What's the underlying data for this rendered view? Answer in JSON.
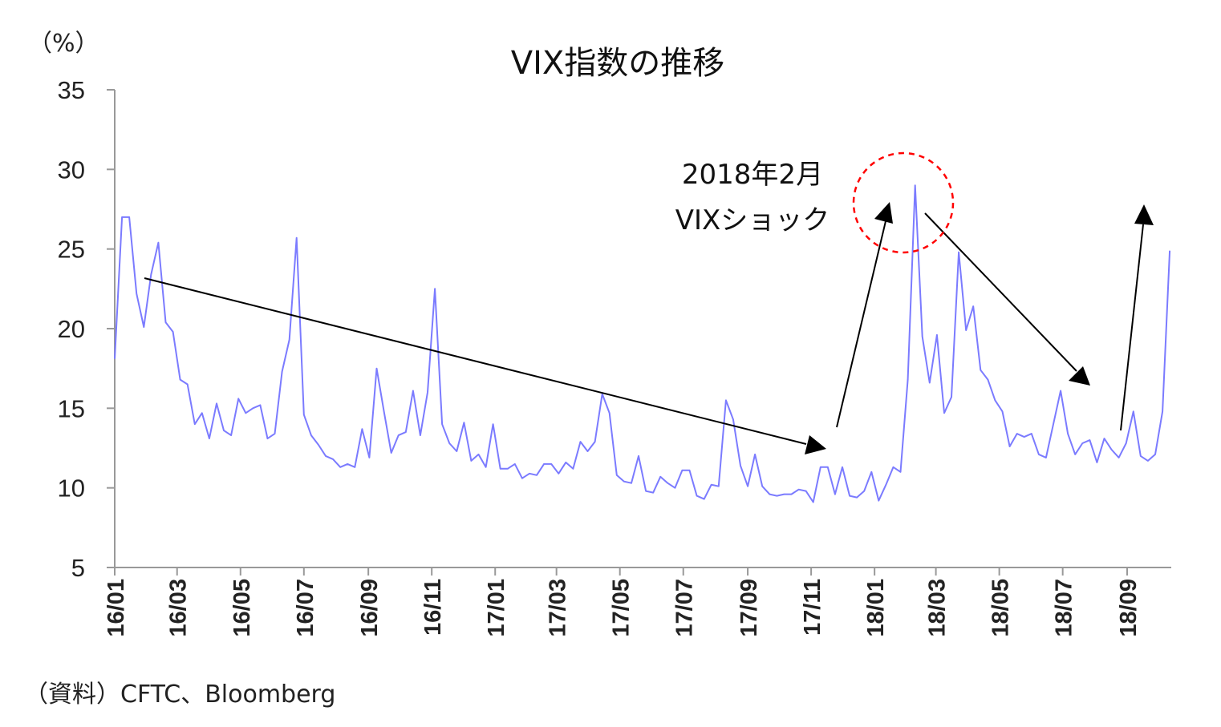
{
  "chart_data": {
    "type": "line",
    "title": "VIX指数の推移",
    "ylabel": "（%）",
    "xlabel": "",
    "ylim": [
      5,
      35
    ],
    "yticks": [
      5,
      10,
      15,
      20,
      25,
      30,
      35
    ],
    "xticks": [
      "16/01",
      "16/03",
      "16/05",
      "16/07",
      "16/09",
      "16/11",
      "17/01",
      "17/03",
      "17/05",
      "17/07",
      "17/09",
      "17/11",
      "18/01",
      "18/03",
      "18/05",
      "18/07",
      "18/09"
    ],
    "grid": false,
    "line_color": "#7b7bff",
    "points": [
      [
        "2016-01-01",
        18.1
      ],
      [
        "2016-01-08",
        27.0
      ],
      [
        "2016-01-15",
        27.0
      ],
      [
        "2016-01-22",
        22.2
      ],
      [
        "2016-01-29",
        20.1
      ],
      [
        "2016-02-05",
        23.4
      ],
      [
        "2016-02-12",
        25.4
      ],
      [
        "2016-02-19",
        20.4
      ],
      [
        "2016-02-26",
        19.8
      ],
      [
        "2016-03-04",
        16.8
      ],
      [
        "2016-03-11",
        16.5
      ],
      [
        "2016-03-18",
        14.0
      ],
      [
        "2016-03-25",
        14.7
      ],
      [
        "2016-04-01",
        13.1
      ],
      [
        "2016-04-08",
        15.3
      ],
      [
        "2016-04-15",
        13.6
      ],
      [
        "2016-04-22",
        13.3
      ],
      [
        "2016-04-29",
        15.6
      ],
      [
        "2016-05-06",
        14.7
      ],
      [
        "2016-05-13",
        15.0
      ],
      [
        "2016-05-20",
        15.2
      ],
      [
        "2016-05-27",
        13.1
      ],
      [
        "2016-06-03",
        13.4
      ],
      [
        "2016-06-10",
        17.3
      ],
      [
        "2016-06-17",
        19.3
      ],
      [
        "2016-06-24",
        25.7
      ],
      [
        "2016-07-01",
        14.6
      ],
      [
        "2016-07-08",
        13.3
      ],
      [
        "2016-07-15",
        12.7
      ],
      [
        "2016-07-22",
        12.0
      ],
      [
        "2016-07-29",
        11.8
      ],
      [
        "2016-08-05",
        11.3
      ],
      [
        "2016-08-12",
        11.5
      ],
      [
        "2016-08-19",
        11.3
      ],
      [
        "2016-08-26",
        13.7
      ],
      [
        "2016-09-02",
        11.9
      ],
      [
        "2016-09-09",
        17.5
      ],
      [
        "2016-09-16",
        14.8
      ],
      [
        "2016-09-23",
        12.2
      ],
      [
        "2016-09-30",
        13.3
      ],
      [
        "2016-10-07",
        13.5
      ],
      [
        "2016-10-14",
        16.1
      ],
      [
        "2016-10-21",
        13.3
      ],
      [
        "2016-10-28",
        16.0
      ],
      [
        "2016-11-04",
        22.5
      ],
      [
        "2016-11-11",
        14.0
      ],
      [
        "2016-11-18",
        12.8
      ],
      [
        "2016-11-25",
        12.3
      ],
      [
        "2016-12-02",
        14.1
      ],
      [
        "2016-12-09",
        11.7
      ],
      [
        "2016-12-16",
        12.1
      ],
      [
        "2016-12-23",
        11.3
      ],
      [
        "2016-12-30",
        14.0
      ],
      [
        "2017-01-06",
        11.2
      ],
      [
        "2017-01-13",
        11.2
      ],
      [
        "2017-01-20",
        11.5
      ],
      [
        "2017-01-27",
        10.6
      ],
      [
        "2017-02-03",
        10.9
      ],
      [
        "2017-02-10",
        10.8
      ],
      [
        "2017-02-17",
        11.5
      ],
      [
        "2017-02-24",
        11.5
      ],
      [
        "2017-03-03",
        10.9
      ],
      [
        "2017-03-10",
        11.6
      ],
      [
        "2017-03-17",
        11.2
      ],
      [
        "2017-03-24",
        12.9
      ],
      [
        "2017-03-31",
        12.3
      ],
      [
        "2017-04-07",
        12.9
      ],
      [
        "2017-04-14",
        15.9
      ],
      [
        "2017-04-21",
        14.7
      ],
      [
        "2017-04-28",
        10.8
      ],
      [
        "2017-05-05",
        10.4
      ],
      [
        "2017-05-12",
        10.3
      ],
      [
        "2017-05-19",
        12.0
      ],
      [
        "2017-05-26",
        9.8
      ],
      [
        "2017-06-02",
        9.7
      ],
      [
        "2017-06-09",
        10.7
      ],
      [
        "2017-06-16",
        10.3
      ],
      [
        "2017-06-23",
        10.0
      ],
      [
        "2017-06-30",
        11.1
      ],
      [
        "2017-07-07",
        11.1
      ],
      [
        "2017-07-14",
        9.5
      ],
      [
        "2017-07-21",
        9.3
      ],
      [
        "2017-07-28",
        10.2
      ],
      [
        "2017-08-04",
        10.1
      ],
      [
        "2017-08-11",
        15.5
      ],
      [
        "2017-08-18",
        14.3
      ],
      [
        "2017-08-25",
        11.4
      ],
      [
        "2017-09-01",
        10.1
      ],
      [
        "2017-09-08",
        12.1
      ],
      [
        "2017-09-15",
        10.1
      ],
      [
        "2017-09-22",
        9.6
      ],
      [
        "2017-09-29",
        9.5
      ],
      [
        "2017-10-06",
        9.6
      ],
      [
        "2017-10-13",
        9.6
      ],
      [
        "2017-10-20",
        9.9
      ],
      [
        "2017-10-27",
        9.8
      ],
      [
        "2017-11-03",
        9.1
      ],
      [
        "2017-11-10",
        11.3
      ],
      [
        "2017-11-17",
        11.3
      ],
      [
        "2017-11-24",
        9.6
      ],
      [
        "2017-12-01",
        11.3
      ],
      [
        "2017-12-08",
        9.5
      ],
      [
        "2017-12-15",
        9.4
      ],
      [
        "2017-12-22",
        9.8
      ],
      [
        "2017-12-29",
        11.0
      ],
      [
        "2018-01-05",
        9.2
      ],
      [
        "2018-01-12",
        10.2
      ],
      [
        "2018-01-19",
        11.3
      ],
      [
        "2018-01-26",
        11.0
      ],
      [
        "2018-02-02",
        16.8
      ],
      [
        "2018-02-09",
        29.0
      ],
      [
        "2018-02-16",
        19.5
      ],
      [
        "2018-02-23",
        16.6
      ],
      [
        "2018-03-02",
        19.6
      ],
      [
        "2018-03-09",
        14.7
      ],
      [
        "2018-03-16",
        15.7
      ],
      [
        "2018-03-23",
        24.8
      ],
      [
        "2018-03-30",
        19.9
      ],
      [
        "2018-04-06",
        21.4
      ],
      [
        "2018-04-13",
        17.4
      ],
      [
        "2018-04-20",
        16.8
      ],
      [
        "2018-04-27",
        15.5
      ],
      [
        "2018-05-04",
        14.8
      ],
      [
        "2018-05-11",
        12.6
      ],
      [
        "2018-05-18",
        13.4
      ],
      [
        "2018-05-25",
        13.2
      ],
      [
        "2018-06-01",
        13.4
      ],
      [
        "2018-06-08",
        12.1
      ],
      [
        "2018-06-15",
        11.9
      ],
      [
        "2018-06-22",
        14.0
      ],
      [
        "2018-06-29",
        16.1
      ],
      [
        "2018-07-06",
        13.4
      ],
      [
        "2018-07-13",
        12.1
      ],
      [
        "2018-07-20",
        12.8
      ],
      [
        "2018-07-27",
        13.0
      ],
      [
        "2018-08-03",
        11.6
      ],
      [
        "2018-08-10",
        13.1
      ],
      [
        "2018-08-17",
        12.4
      ],
      [
        "2018-08-24",
        11.9
      ],
      [
        "2018-08-31",
        12.8
      ],
      [
        "2018-09-07",
        14.8
      ],
      [
        "2018-09-14",
        12.0
      ],
      [
        "2018-09-21",
        11.7
      ],
      [
        "2018-09-28",
        12.1
      ],
      [
        "2018-10-05",
        14.8
      ],
      [
        "2018-10-12",
        24.9
      ]
    ],
    "annotations": {
      "line1": "2018年2月",
      "line2": "VIXショック",
      "circle_color": "#ff0000",
      "arrow_color": "#000000"
    },
    "source": "（資料）CFTC、Bloomberg"
  }
}
